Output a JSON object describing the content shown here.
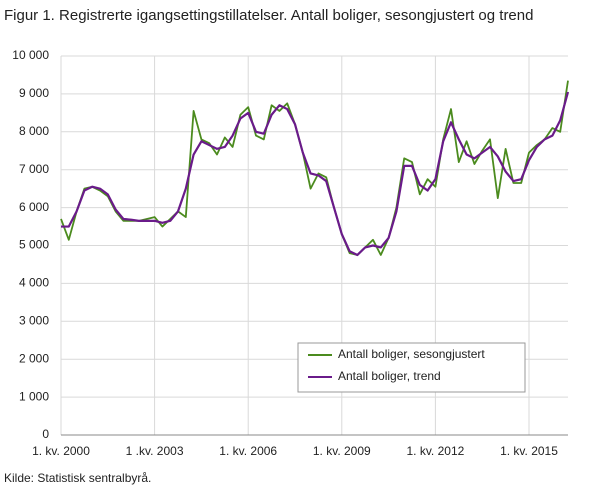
{
  "chart_data": {
    "type": "line",
    "title": "Figur 1. Registrerte igangsettingstillatelser. Antall boliger, sesongjustert og trend",
    "source": "Kilde: Statistisk sentralbyrå.",
    "categories": [
      "1. kv. 2000",
      null,
      null,
      null,
      null,
      null,
      null,
      null,
      null,
      null,
      null,
      null,
      "1 .kv. 2003",
      null,
      null,
      null,
      null,
      null,
      null,
      null,
      null,
      null,
      null,
      null,
      "1. kv. 2006",
      null,
      null,
      null,
      null,
      null,
      null,
      null,
      null,
      null,
      null,
      null,
      "1. kv. 2009",
      null,
      null,
      null,
      null,
      null,
      null,
      null,
      null,
      null,
      null,
      null,
      "1. kv. 2012",
      null,
      null,
      null,
      null,
      null,
      null,
      null,
      null,
      null,
      null,
      null,
      "1. kv. 2015",
      null,
      null,
      null,
      null,
      null
    ],
    "series": [
      {
        "name": "Antall boliger, sesongjustert",
        "color": "#4b8b1e",
        "values": [
          5700,
          5150,
          5900,
          6500,
          6550,
          6450,
          6300,
          5900,
          5650,
          5650,
          5650,
          5700,
          5750,
          5500,
          5700,
          5900,
          5750,
          8550,
          7800,
          7700,
          7400,
          7850,
          7600,
          8450,
          8650,
          7900,
          7800,
          8700,
          8550,
          8750,
          8200,
          7450,
          6500,
          6900,
          6800,
          6000,
          5300,
          4800,
          4750,
          4950,
          5150,
          4750,
          5200,
          6000,
          7300,
          7200,
          6350,
          6750,
          6550,
          7800,
          8600,
          7200,
          7750,
          7150,
          7500,
          7800,
          6250,
          7550,
          6650,
          6650,
          7450,
          7650,
          7800,
          8100,
          8000,
          9350
        ]
      },
      {
        "name": "Antall boliger, trend",
        "color": "#6a1b8a",
        "values": [
          5500,
          5500,
          5900,
          6450,
          6550,
          6500,
          6350,
          5950,
          5700,
          5680,
          5650,
          5650,
          5650,
          5600,
          5650,
          5900,
          6500,
          7400,
          7750,
          7650,
          7550,
          7600,
          7900,
          8350,
          8500,
          8000,
          7950,
          8450,
          8700,
          8600,
          8200,
          7450,
          6900,
          6850,
          6700,
          6000,
          5300,
          4850,
          4750,
          4950,
          5000,
          4950,
          5200,
          5900,
          7100,
          7100,
          6600,
          6450,
          6750,
          7750,
          8250,
          7800,
          7400,
          7300,
          7450,
          7600,
          7350,
          6950,
          6700,
          6750,
          7250,
          7600,
          7800,
          7900,
          8300,
          9050
        ]
      }
    ],
    "ylim": [
      0,
      10000
    ],
    "yticks": [
      0,
      {
        "value": 1000,
        "label": "1 000"
      },
      {
        "value": 2000,
        "label": "2 000"
      },
      {
        "value": 3000,
        "label": "3 000"
      },
      {
        "value": 4000,
        "label": "4 000"
      },
      {
        "value": 5000,
        "label": "5 000"
      },
      {
        "value": 6000,
        "label": "6 000"
      },
      {
        "value": 7000,
        "label": "7 000"
      },
      {
        "value": 8000,
        "label": "8 000"
      },
      {
        "value": 9000,
        "label": "9 000"
      },
      {
        "value": 10000,
        "label": "10 000"
      }
    ],
    "grid": true
  }
}
